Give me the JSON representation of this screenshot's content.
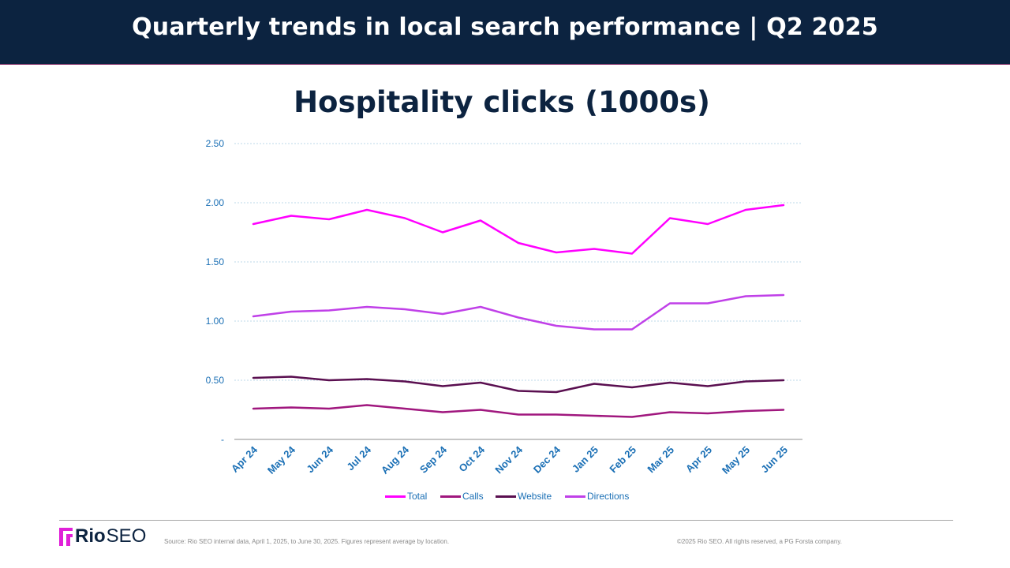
{
  "header": {
    "title": "Quarterly trends in local search performance  |  Q2 2025"
  },
  "footer": {
    "logo_bold": "Rio",
    "logo_light": "SEO",
    "source": "Source: Rio SEO internal data, April 1, 2025, to June 30, 2025. Figures represent average by location.",
    "copyright": "©2025 Rio SEO. All rights reserved, a PG Forsta company."
  },
  "chart_data": {
    "type": "line",
    "title": "Hospitality clicks (1000s)",
    "xlabel": "",
    "ylabel": "",
    "ylim": [
      0,
      2.5
    ],
    "yticks": [
      {
        "value": 0,
        "label": "-"
      },
      {
        "value": 0.5,
        "label": "0.50"
      },
      {
        "value": 1.0,
        "label": "1.00"
      },
      {
        "value": 1.5,
        "label": "1.50"
      },
      {
        "value": 2.0,
        "label": "2.00"
      },
      {
        "value": 2.5,
        "label": "2.50"
      }
    ],
    "grid": true,
    "legend_position": "bottom",
    "categories": [
      "Apr 24",
      "May 24",
      "Jun 24",
      "Jul 24",
      "Aug 24",
      "Sep 24",
      "Oct 24",
      "Nov 24",
      "Dec 24",
      "Jan 25",
      "Feb 25",
      "Mar 25",
      "Apr 25",
      "May 25",
      "Jun 25"
    ],
    "series": [
      {
        "name": "Total",
        "color": "#ff00ff",
        "values": [
          1.82,
          1.89,
          1.86,
          1.94,
          1.87,
          1.75,
          1.85,
          1.66,
          1.58,
          1.61,
          1.57,
          1.87,
          1.82,
          1.94,
          1.98
        ]
      },
      {
        "name": "Calls",
        "color": "#a0177e",
        "values": [
          0.26,
          0.27,
          0.26,
          0.29,
          0.26,
          0.23,
          0.25,
          0.21,
          0.21,
          0.2,
          0.19,
          0.23,
          0.22,
          0.24,
          0.25
        ]
      },
      {
        "name": "Website",
        "color": "#5a0f50",
        "values": [
          0.52,
          0.53,
          0.5,
          0.51,
          0.49,
          0.45,
          0.48,
          0.41,
          0.4,
          0.47,
          0.44,
          0.48,
          0.45,
          0.49,
          0.5
        ]
      },
      {
        "name": "Directions",
        "color": "#c040e8",
        "values": [
          1.04,
          1.08,
          1.09,
          1.12,
          1.1,
          1.06,
          1.12,
          1.03,
          0.96,
          0.93,
          0.93,
          1.15,
          1.15,
          1.21,
          1.22
        ]
      }
    ]
  }
}
